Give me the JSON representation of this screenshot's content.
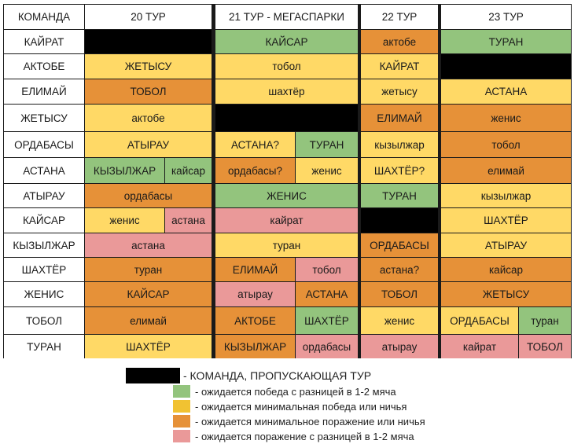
{
  "colors": {
    "win": "#93c47d",
    "min_win_draw": "#ffd966",
    "min_loss_draw": "#e69138",
    "loss": "#ea9999",
    "bye": "#000000",
    "header": "#ffffff",
    "legend_yellow": "#f1c232"
  },
  "table": {
    "headers": [
      "КОМАНДА",
      "20 ТУР",
      "21 ТУР - МЕГАСПАРКИ",
      "22 ТУР",
      "23 ТУР"
    ],
    "rows": [
      {
        "team": "КАЙРАТ",
        "t20": [
          {
            "text": "",
            "c": "bye"
          }
        ],
        "t21": [
          {
            "text": "КАЙСАР",
            "c": "win"
          }
        ],
        "t22": [
          {
            "text": "актобе",
            "c": "min_loss_draw"
          }
        ],
        "t23": [
          {
            "text": "ТУРАН",
            "c": "win"
          }
        ]
      },
      {
        "team": "АКТОБЕ",
        "t20": [
          {
            "text": "ЖЕТЫСУ",
            "c": "min_win_draw"
          }
        ],
        "t21": [
          {
            "text": "тобол",
            "c": "min_win_draw"
          }
        ],
        "t22": [
          {
            "text": "КАЙРАТ",
            "c": "min_win_draw"
          }
        ],
        "t23": [
          {
            "text": "",
            "c": "bye"
          }
        ]
      },
      {
        "team": "ЕЛИМАЙ",
        "t20": [
          {
            "text": "ТОБОЛ",
            "c": "min_loss_draw"
          }
        ],
        "t21": [
          {
            "text": "шахтёр",
            "c": "min_win_draw"
          }
        ],
        "t22": [
          {
            "text": "жетысу",
            "c": "min_win_draw"
          }
        ],
        "t23": [
          {
            "text": "АСТАНА",
            "c": "min_win_draw"
          }
        ]
      },
      {
        "team": "ЖЕТЫСУ",
        "t20": [
          {
            "text": "актобе",
            "c": "min_win_draw"
          }
        ],
        "t21": [
          {
            "text": "",
            "c": "bye"
          }
        ],
        "t22": [
          {
            "text": "ЕЛИМАЙ",
            "c": "min_loss_draw"
          }
        ],
        "t23": [
          {
            "text": "женис",
            "c": "min_loss_draw"
          }
        ]
      },
      {
        "team": "ОРДАБАСЫ",
        "t20": [
          {
            "text": "АТЫРАУ",
            "c": "min_win_draw"
          }
        ],
        "t21": [
          {
            "text": "АСТАНА?",
            "c": "min_win_draw"
          },
          {
            "text": "ТУРАН",
            "c": "win"
          }
        ],
        "t22": [
          {
            "text": "кызылжар",
            "c": "min_win_draw"
          }
        ],
        "t23": [
          {
            "text": "тобол",
            "c": "min_loss_draw"
          }
        ]
      },
      {
        "team": "АСТАНА",
        "t20": [
          {
            "text": "КЫЗЫЛЖАР",
            "c": "win"
          },
          {
            "text": "кайсар",
            "c": "win"
          }
        ],
        "t21": [
          {
            "text": "ордабасы?",
            "c": "min_loss_draw"
          },
          {
            "text": "женис",
            "c": "min_win_draw"
          }
        ],
        "t22": [
          {
            "text": "ШАХТЁР?",
            "c": "min_win_draw"
          }
        ],
        "t23": [
          {
            "text": "елимай",
            "c": "min_loss_draw"
          }
        ]
      },
      {
        "team": "АТЫРАУ",
        "t20": [
          {
            "text": "ордабасы",
            "c": "min_loss_draw"
          }
        ],
        "t21": [
          {
            "text": "ЖЕНИС",
            "c": "win"
          }
        ],
        "t22": [
          {
            "text": "ТУРАН",
            "c": "win"
          }
        ],
        "t23": [
          {
            "text": "кызылжар",
            "c": "min_win_draw"
          }
        ]
      },
      {
        "team": "КАЙСАР",
        "t20": [
          {
            "text": "женис",
            "c": "min_win_draw"
          },
          {
            "text": "астана",
            "c": "loss"
          }
        ],
        "t21": [
          {
            "text": "кайрат",
            "c": "loss"
          }
        ],
        "t22": [
          {
            "text": "",
            "c": "bye"
          }
        ],
        "t23": [
          {
            "text": "ШАХТЁР",
            "c": "min_win_draw"
          }
        ]
      },
      {
        "team": "КЫЗЫЛЖАР",
        "t20": [
          {
            "text": "астана",
            "c": "loss"
          }
        ],
        "t21": [
          {
            "text": "туран",
            "c": "min_win_draw"
          }
        ],
        "t22": [
          {
            "text": "ОРДАБАСЫ",
            "c": "min_loss_draw"
          }
        ],
        "t23": [
          {
            "text": "АТЫРАУ",
            "c": "min_win_draw"
          }
        ]
      },
      {
        "team": "ШАХТЁР",
        "t20": [
          {
            "text": "туран",
            "c": "min_loss_draw"
          }
        ],
        "t21": [
          {
            "text": "ЕЛИМАЙ",
            "c": "min_loss_draw"
          },
          {
            "text": "тобол",
            "c": "loss"
          }
        ],
        "t22": [
          {
            "text": "астана?",
            "c": "min_loss_draw"
          }
        ],
        "t23": [
          {
            "text": "кайсар",
            "c": "min_loss_draw"
          }
        ]
      },
      {
        "team": "ЖЕНИС",
        "t20": [
          {
            "text": "КАЙСАР",
            "c": "min_loss_draw"
          }
        ],
        "t21": [
          {
            "text": "атырау",
            "c": "loss"
          },
          {
            "text": "АСТАНА",
            "c": "min_loss_draw"
          }
        ],
        "t22": [
          {
            "text": "ТОБОЛ",
            "c": "min_loss_draw"
          }
        ],
        "t23": [
          {
            "text": "ЖЕТЫСУ",
            "c": "min_loss_draw"
          }
        ]
      },
      {
        "team": "ТОБОЛ",
        "t20": [
          {
            "text": "елимай",
            "c": "min_loss_draw"
          }
        ],
        "t21": [
          {
            "text": "АКТОБЕ",
            "c": "min_loss_draw"
          },
          {
            "text": "ШАХТЁР",
            "c": "win"
          }
        ],
        "t22": [
          {
            "text": "женис",
            "c": "min_win_draw"
          }
        ],
        "t23": [
          {
            "text": "ОРДАБАСЫ",
            "c": "min_win_draw"
          },
          {
            "text": "туран",
            "c": "win"
          }
        ]
      },
      {
        "team": "ТУРАН",
        "t20": [
          {
            "text": "ШАХТЁР",
            "c": "min_win_draw"
          }
        ],
        "t21": [
          {
            "text": "КЫЗЫЛЖАР",
            "c": "min_loss_draw"
          },
          {
            "text": "ордабасы",
            "c": "loss"
          }
        ],
        "t22": [
          {
            "text": "атырау",
            "c": "loss"
          }
        ],
        "t23": [
          {
            "text": "кайрат",
            "c": "loss"
          },
          {
            "text": "ТОБОЛ",
            "c": "loss"
          }
        ]
      }
    ]
  },
  "legend": [
    {
      "key": "bye",
      "label": "- КОМАНДА, ПРОПУСКАЮЩАЯ ТУР"
    },
    {
      "key": "win",
      "label": "- ожидается победа с разницей в 1-2 мяча"
    },
    {
      "key": "legend_yellow",
      "label": "- ожидается минимальная победа или ничья"
    },
    {
      "key": "min_loss_draw",
      "label": "- ожидается минимальное поражение или ничья"
    },
    {
      "key": "loss",
      "label": "- ожидается поражение с разницей в 1-2 мяча"
    }
  ]
}
